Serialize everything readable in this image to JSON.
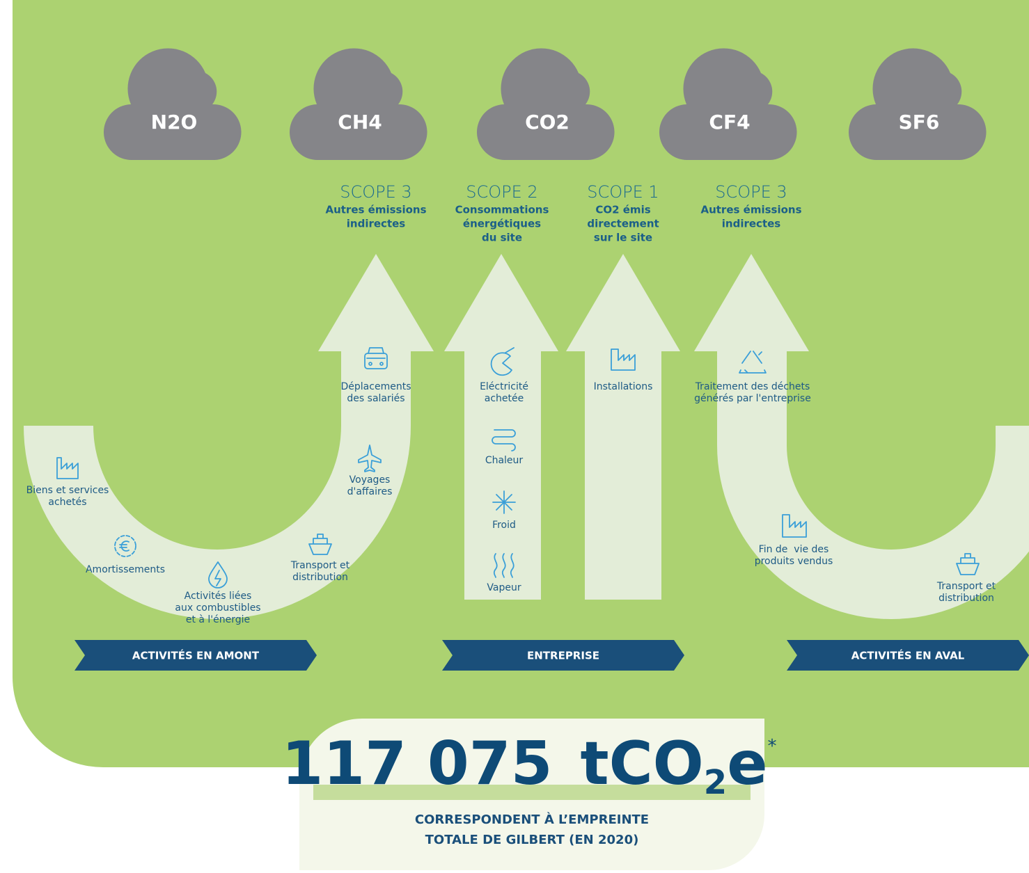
{
  "clouds": [
    "N2O",
    "CH4",
    "CO2",
    "CF4",
    "SF6"
  ],
  "scopes": [
    {
      "name": "SCOPE 3",
      "lines": [
        "Autres émissions",
        "indirectes"
      ]
    },
    {
      "name": "SCOPE 2",
      "lines": [
        "Consommations",
        "énergétiques",
        "du site"
      ]
    },
    {
      "name": "SCOPE 1",
      "lines": [
        "CO2 émis",
        "directement",
        "sur le site"
      ]
    },
    {
      "name": "SCOPE 3",
      "lines": [
        "Autres émissions",
        "indirectes"
      ]
    }
  ],
  "activities": [
    {
      "lines": [
        "Biens et services",
        "achetés"
      ]
    },
    {
      "lines": [
        "Amortissements"
      ]
    },
    {
      "lines": [
        "Activités liées",
        "aux combustibles",
        "et à l'énergie"
      ]
    },
    {
      "lines": [
        "Transport et",
        "distribution"
      ]
    },
    {
      "lines": [
        "Voyages",
        "d'affaires"
      ]
    },
    {
      "lines": [
        "Déplacements",
        "des salariés"
      ]
    },
    {
      "lines": [
        "Eléctricité",
        "achetée"
      ]
    },
    {
      "lines": [
        "Chaleur"
      ]
    },
    {
      "lines": [
        "Froid"
      ]
    },
    {
      "lines": [
        "Vapeur"
      ]
    },
    {
      "lines": [
        "Installations"
      ]
    },
    {
      "lines": [
        "Traitement des déchets",
        "générés par l'entreprise"
      ]
    },
    {
      "lines": [
        "Fin de  vie des",
        "produits vendus"
      ]
    },
    {
      "lines": [
        "Transport et",
        "distribution"
      ]
    }
  ],
  "banners": [
    "ACTIVITÉS EN AMONT",
    "ENTREPRISE",
    "ACTIVITÉS EN AVAL"
  ],
  "total": {
    "value": "117 075",
    "unit": "tCO",
    "subscript": "2",
    "suffix": "e",
    "note": "*",
    "caption": [
      "CORRESPONDENT À L’EMPREINTE",
      "TOTALE DE GILBERT (EN 2020)"
    ]
  }
}
